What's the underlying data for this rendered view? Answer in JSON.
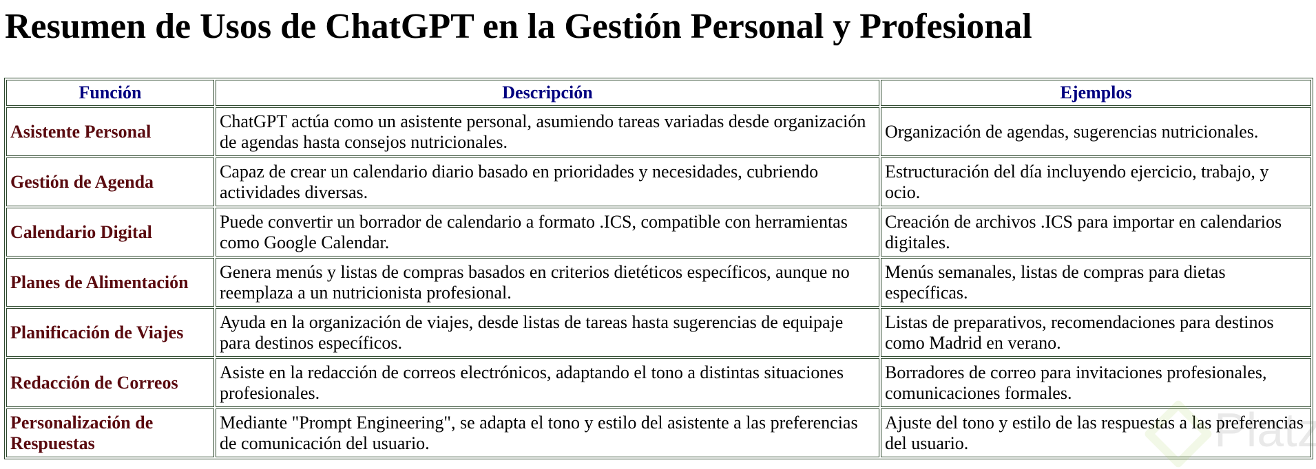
{
  "title": "Resumen de Usos de ChatGPT en la Gestión Personal y Profesional",
  "table": {
    "headers": [
      "Función",
      "Descripción",
      "Ejemplos"
    ],
    "rows": [
      {
        "funcion": "Asistente Personal",
        "descripcion": "ChatGPT actúa como un asistente personal, asumiendo tareas variadas desde organización de agendas hasta consejos nutricionales.",
        "ejemplos": "Organización de agendas, sugerencias nutricionales."
      },
      {
        "funcion": "Gestión de Agenda",
        "descripcion": "Capaz de crear un calendario diario basado en prioridades y necesidades, cubriendo actividades diversas.",
        "ejemplos": "Estructuración del día incluyendo ejercicio, trabajo, y ocio."
      },
      {
        "funcion": "Calendario Digital",
        "descripcion": "Puede convertir un borrador de calendario a formato .ICS, compatible con herramientas como Google Calendar.",
        "ejemplos": "Creación de archivos .ICS para importar en calendarios digitales."
      },
      {
        "funcion": "Planes de Alimentación",
        "descripcion": "Genera menús y listas de compras basados en criterios dietéticos específicos, aunque no reemplaza a un nutricionista profesional.",
        "ejemplos": "Menús semanales, listas de compras para dietas específicas."
      },
      {
        "funcion": "Planificación de Viajes",
        "descripcion": "Ayuda en la organización de viajes, desde listas de tareas hasta sugerencias de equipaje para destinos específicos.",
        "ejemplos": "Listas de preparativos, recomendaciones para destinos como Madrid en verano."
      },
      {
        "funcion": "Redacción de Correos",
        "descripcion": "Asiste en la redacción de correos electrónicos, adaptando el tono a distintas situaciones profesionales.",
        "ejemplos": "Borradores de correo para invitaciones profesionales, comunicaciones formales."
      },
      {
        "funcion": "Personalización de Respuestas",
        "descripcion": "Mediante \"Prompt Engineering\", se adapta el tono y estilo del asistente a las preferencias de comunicación del usuario.",
        "ejemplos": "Ajuste del tono y estilo de las respuestas a las preferencias del usuario."
      }
    ]
  },
  "watermark": {
    "logo": "Platzi"
  },
  "colors": {
    "header_text": "#000080",
    "function_text": "#5a0a0f",
    "border": "#2f4a2f"
  }
}
